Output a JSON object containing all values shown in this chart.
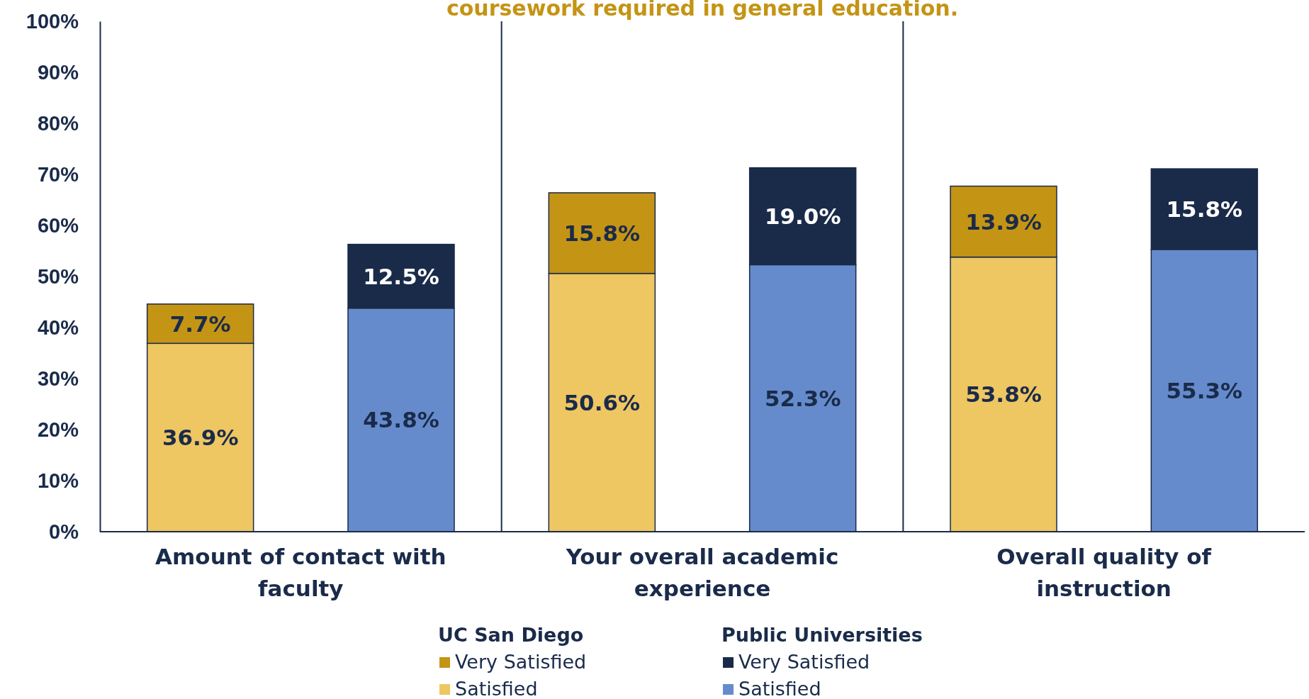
{
  "chart_data": {
    "type": "bar",
    "title": "coursework required in general education.",
    "categories": [
      null,
      null,
      null,
      null,
      null,
      null
    ],
    "series": [
      {
        "name": "Satisfied",
        "color": "#eec662",
        "values": [
          36.9,
          null,
          50.6,
          null,
          53.8,
          null
        ],
        "value_labels": [
          "36.9%",
          null,
          "50.6%",
          null,
          "53.8%",
          null
        ]
      },
      {
        "name": "Very Satisfied",
        "color": "#c49414",
        "values": [
          7.7,
          null,
          15.8,
          null,
          13.9,
          null
        ],
        "value_labels": [
          "7.7%",
          null,
          "15.8%",
          null,
          "13.9%",
          null
        ]
      },
      {
        "name": "Satisfied",
        "color": "#658bcc",
        "values": [
          null,
          43.8,
          null,
          52.3,
          null,
          55.3
        ],
        "value_labels": [
          null,
          "43.8%",
          null,
          "52.3%",
          null,
          "55.3%"
        ]
      },
      {
        "name": "Very Satisfied",
        "color": "#1a2b4a",
        "values": [
          null,
          12.5,
          null,
          19.0,
          null,
          15.8
        ],
        "value_labels": [
          null,
          "12.5%",
          null,
          "19.0%",
          null,
          "15.8%"
        ]
      }
    ],
    "stacked": true,
    "ylim": [
      0,
      100
    ],
    "yticks": [
      {
        "value": 0,
        "label": "0%"
      },
      {
        "value": 10,
        "label": "10%"
      },
      {
        "value": 20,
        "label": "20%"
      },
      {
        "value": 30,
        "label": "30%"
      },
      {
        "value": 40,
        "label": "40%"
      },
      {
        "value": 50,
        "label": "50%"
      },
      {
        "value": 60,
        "label": "60%"
      },
      {
        "value": 70,
        "label": "70%"
      },
      {
        "value": 80,
        "label": "80%"
      },
      {
        "value": 90,
        "label": "90%"
      },
      {
        "value": 100,
        "label": "100%"
      }
    ],
    "annotations": [
      "Amount of contact with faculty",
      "Your overall academic experience",
      "Overall quality of instruction",
      "UC San Diego",
      "Public Universities"
    ],
    "legend": "bottom"
  }
}
